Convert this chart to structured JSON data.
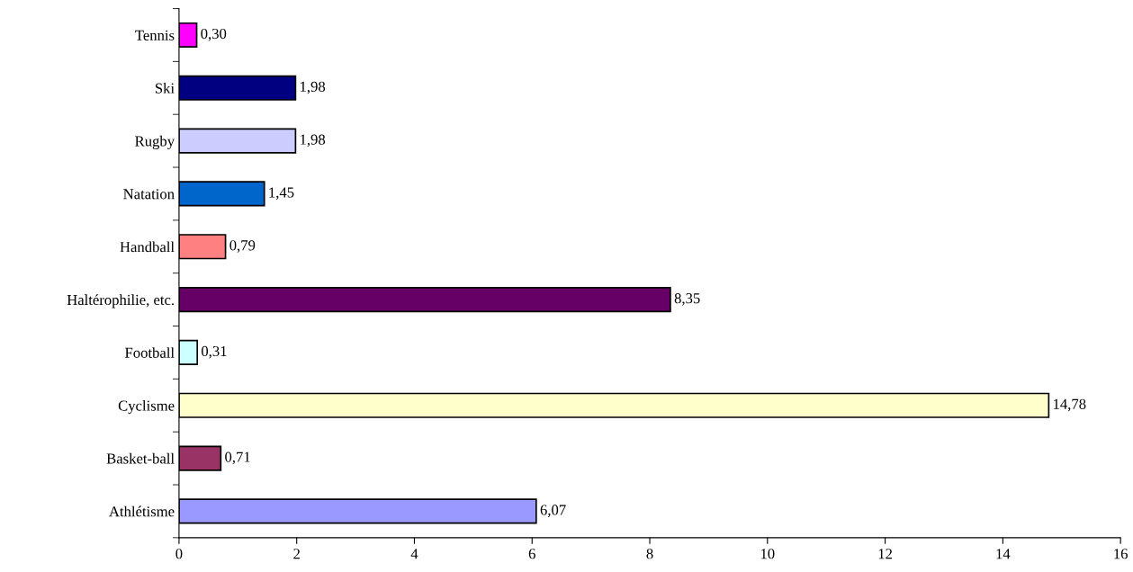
{
  "chart_data": {
    "type": "bar",
    "orientation": "horizontal",
    "categories": [
      "Tennis",
      "Ski",
      "Rugby",
      "Natation",
      "Handball",
      "Haltérophilie, etc.",
      "Football",
      "Cyclisme",
      "Basket-ball",
      "Athlétisme"
    ],
    "values": [
      0.3,
      1.98,
      1.98,
      1.45,
      0.79,
      8.35,
      0.31,
      14.78,
      0.71,
      6.07
    ],
    "colors": [
      "#ff00ff",
      "#000080",
      "#ccccff",
      "#0066cc",
      "#ff8080",
      "#660066",
      "#ccffff",
      "#ffffcc",
      "#993366",
      "#9999ff"
    ],
    "value_labels": [
      "0,30",
      "1,98",
      "1,98",
      "1,45",
      "0,79",
      "8,35",
      "0,31",
      "14,78",
      "0,71",
      "6,07"
    ],
    "xlim": [
      0,
      16
    ],
    "xticks": [
      0,
      2,
      4,
      6,
      8,
      10,
      12,
      14,
      16
    ],
    "grid": false,
    "legend": false
  }
}
